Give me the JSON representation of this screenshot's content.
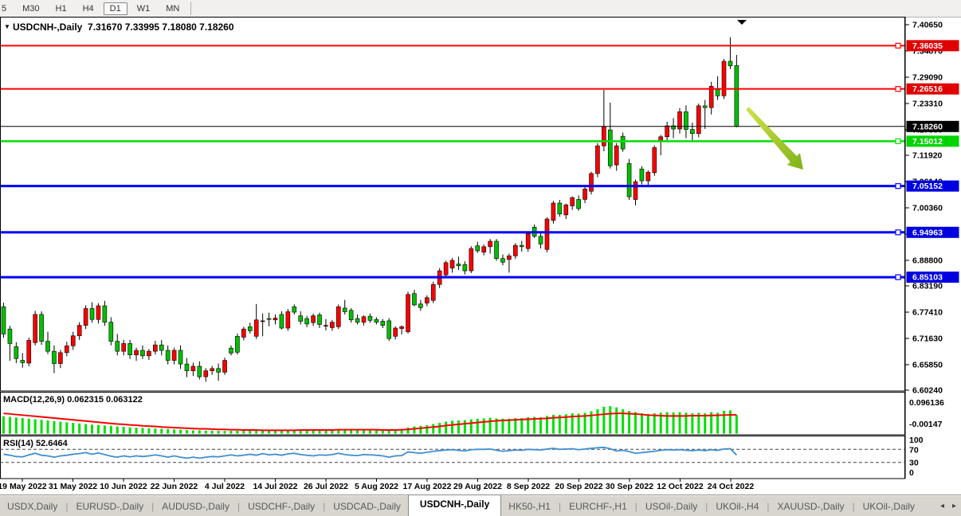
{
  "toolbar": {
    "timeframes": [
      {
        "label": "5",
        "active": false
      },
      {
        "label": "M30",
        "active": false
      },
      {
        "label": "H1",
        "active": false
      },
      {
        "label": "H4",
        "active": false
      },
      {
        "label": "D1",
        "active": true
      },
      {
        "label": "W1",
        "active": false
      },
      {
        "label": "MN",
        "active": false
      }
    ]
  },
  "chart": {
    "title_display": "USDCNH-,Daily  7.31670 7.33995 7.18080 7.18260",
    "symbol": "USDCNH-",
    "timeframe": "Daily",
    "ohlc": {
      "open": "7.31670",
      "high": "7.33995",
      "low": "7.18080",
      "close": "7.18260"
    },
    "dropdown_glyph": "▼",
    "top_marker_glyph": "▼"
  },
  "price_axis": {
    "labels": [
      "7.40650",
      "7.34870",
      "7.29090",
      "7.23310",
      "7.17530",
      "7.11920",
      "7.06140",
      "7.00360",
      "6.94580",
      "6.88800",
      "6.83190",
      "6.77410",
      "6.71630",
      "6.65850",
      "6.60240"
    ],
    "badges": [
      {
        "text": "7.36035",
        "price": 7.36035,
        "color": "#e00000",
        "text_color": "#ffffff"
      },
      {
        "text": "7.26516",
        "price": 7.26516,
        "color": "#e00000",
        "text_color": "#ffffff"
      },
      {
        "text": "7.18260",
        "price": 7.1826,
        "color": "#000000",
        "text_color": "#ffffff"
      },
      {
        "text": "7.15012",
        "price": 7.15012,
        "color": "#00d400",
        "text_color": "#ffffff"
      },
      {
        "text": "7.05152",
        "price": 7.05152,
        "color": "#0000e0",
        "text_color": "#ffffff"
      },
      {
        "text": "6.94963",
        "price": 6.94963,
        "color": "#0000e0",
        "text_color": "#ffffff"
      },
      {
        "text": "6.85103",
        "price": 6.85103,
        "color": "#0000e0",
        "text_color": "#ffffff"
      }
    ]
  },
  "hlines": [
    {
      "price": 7.36035,
      "color": "#ff0000",
      "width": 2
    },
    {
      "price": 7.26516,
      "color": "#ff0000",
      "width": 2
    },
    {
      "price": 7.1826,
      "color": "#000000",
      "width": 1
    },
    {
      "price": 7.15012,
      "color": "#00e000",
      "width": 2.5
    },
    {
      "price": 7.05152,
      "color": "#0000ff",
      "width": 3
    },
    {
      "price": 6.94963,
      "color": "#0000ff",
      "width": 3
    },
    {
      "price": 6.85103,
      "color": "#0000ff",
      "width": 3
    }
  ],
  "macd": {
    "display": "MACD(12,26,9) 0.062315 0.063122",
    "name": "MACD",
    "params": "12,26,9",
    "value": "0.062315",
    "signal_value": "0.063122",
    "scale_max": "0.096136",
    "scale_min": "-0.00147"
  },
  "rsi": {
    "display": "RSI(14) 52.6464",
    "name": "RSI",
    "params": "14",
    "value": "52.6464",
    "levels": [
      "100",
      "70",
      "30",
      "0"
    ]
  },
  "tabs": {
    "items": [
      {
        "label": "USDX,Daily",
        "active": false
      },
      {
        "label": "EURUSD-,Daily",
        "active": false
      },
      {
        "label": "AUDUSD-,Daily",
        "active": false
      },
      {
        "label": "USDCHF-,Daily",
        "active": false
      },
      {
        "label": "USDCAD-,Daily",
        "active": false
      },
      {
        "label": "USDCNH-,Daily",
        "active": true
      },
      {
        "label": "HK50-,H1",
        "active": false
      },
      {
        "label": "EURCHF-,H1",
        "active": false
      },
      {
        "label": "USOil-,Daily",
        "active": false
      },
      {
        "label": "UKOil-,H4",
        "active": false
      },
      {
        "label": "XAUUSD-,Daily",
        "active": false
      },
      {
        "label": "UKOil-,Daily",
        "active": false
      }
    ],
    "scroll_left": "◂",
    "scroll_right": "▸"
  },
  "annotations": {
    "arrow": {
      "direction": "down-right",
      "color_start": "#d2e24a",
      "color_end": "#7fb318"
    }
  },
  "colors": {
    "bull": "#ff0000",
    "bear": "#00c000",
    "wick": "#000000",
    "body_outline": "#000000",
    "macd_hist": "#00e000",
    "macd_signal": "#ff0000",
    "rsi_line": "#3f8fd2",
    "hline_red": "#ff0000",
    "hline_green": "#00e000",
    "hline_blue": "#0000ff",
    "hline_black": "#000000"
  },
  "chart_data": {
    "type": "candlestick",
    "title": "USDCNH- Daily",
    "ylim": [
      6.6024,
      7.4065
    ],
    "x_ticks": [
      "19 May 2022",
      "31 May 2022",
      "10 Jun 2022",
      "22 Jun 2022",
      "4 Jul 2022",
      "14 Jul 2022",
      "26 Jul 2022",
      "5 Aug 2022",
      "17 Aug 2022",
      "29 Aug 2022",
      "8 Sep 2022",
      "20 Sep 2022",
      "30 Sep 2022",
      "12 Oct 2022",
      "24 Oct 2022"
    ],
    "candles_format": [
      "open",
      "high",
      "low",
      "close"
    ],
    "candles": [
      [
        6.786,
        6.795,
        6.718,
        6.726
      ],
      [
        6.737,
        6.744,
        6.667,
        6.705
      ],
      [
        6.698,
        6.708,
        6.662,
        6.672
      ],
      [
        6.668,
        6.684,
        6.652,
        6.663
      ],
      [
        6.662,
        6.718,
        6.655,
        6.712
      ],
      [
        6.707,
        6.777,
        6.701,
        6.769
      ],
      [
        6.769,
        6.776,
        6.702,
        6.71
      ],
      [
        6.71,
        6.731,
        6.682,
        6.688
      ],
      [
        6.688,
        6.701,
        6.64,
        6.661
      ],
      [
        6.661,
        6.691,
        6.651,
        6.685
      ],
      [
        6.685,
        6.709,
        6.677,
        6.7
      ],
      [
        6.7,
        6.731,
        6.691,
        6.722
      ],
      [
        6.722,
        6.752,
        6.713,
        6.745
      ],
      [
        6.745,
        6.789,
        6.737,
        6.782
      ],
      [
        6.782,
        6.796,
        6.751,
        6.758
      ],
      [
        6.758,
        6.794,
        6.749,
        6.788
      ],
      [
        6.788,
        6.799,
        6.744,
        6.752
      ],
      [
        6.752,
        6.763,
        6.701,
        6.71
      ],
      [
        6.71,
        6.726,
        6.679,
        6.688
      ],
      [
        6.688,
        6.713,
        6.679,
        6.705
      ],
      [
        6.705,
        6.713,
        6.671,
        6.68
      ],
      [
        6.68,
        6.696,
        6.667,
        6.69
      ],
      [
        6.69,
        6.701,
        6.671,
        6.678
      ],
      [
        6.678,
        6.693,
        6.669,
        6.688
      ],
      [
        6.688,
        6.711,
        6.681,
        6.702
      ],
      [
        6.702,
        6.713,
        6.679,
        6.69
      ],
      [
        6.69,
        6.701,
        6.659,
        6.668
      ],
      [
        6.668,
        6.696,
        6.659,
        6.69
      ],
      [
        6.69,
        6.701,
        6.649,
        6.66
      ],
      [
        6.66,
        6.673,
        6.631,
        6.645
      ],
      [
        6.645,
        6.663,
        6.634,
        6.655
      ],
      [
        6.655,
        6.666,
        6.626,
        6.632
      ],
      [
        6.632,
        6.651,
        6.621,
        6.645
      ],
      [
        6.645,
        6.656,
        6.636,
        6.65
      ],
      [
        6.65,
        6.661,
        6.623,
        6.642
      ],
      [
        6.642,
        6.674,
        6.636,
        6.668
      ],
      [
        6.695,
        6.701,
        6.679,
        6.684
      ],
      [
        6.721,
        6.727,
        6.681,
        6.686
      ],
      [
        6.719,
        6.742,
        6.712,
        6.737
      ],
      [
        6.742,
        6.751,
        6.727,
        6.733
      ],
      [
        6.721,
        6.792,
        6.715,
        6.757
      ],
      [
        6.754,
        6.771,
        6.721,
        6.755
      ],
      [
        6.76,
        6.773,
        6.743,
        6.758
      ],
      [
        6.757,
        6.769,
        6.747,
        6.761
      ],
      [
        6.769,
        6.776,
        6.736,
        6.739
      ],
      [
        6.739,
        6.781,
        6.733,
        6.775
      ],
      [
        6.786,
        6.791,
        6.769,
        6.774
      ],
      [
        6.766,
        6.776,
        6.747,
        6.754
      ],
      [
        6.76,
        6.766,
        6.741,
        6.748
      ],
      [
        6.751,
        6.771,
        6.744,
        6.766
      ],
      [
        6.768,
        6.773,
        6.739,
        6.747
      ],
      [
        6.745,
        6.759,
        6.734,
        6.745
      ],
      [
        6.74,
        6.757,
        6.733,
        6.752
      ],
      [
        6.742,
        6.791,
        6.737,
        6.786
      ],
      [
        6.783,
        6.801,
        6.769,
        6.775
      ],
      [
        6.778,
        6.783,
        6.751,
        6.757
      ],
      [
        6.76,
        6.769,
        6.747,
        6.752
      ],
      [
        6.752,
        6.767,
        6.745,
        6.764
      ],
      [
        6.765,
        6.771,
        6.751,
        6.756
      ],
      [
        6.758,
        6.763,
        6.747,
        6.752
      ],
      [
        6.754,
        6.759,
        6.739,
        6.745
      ],
      [
        6.755,
        6.761,
        6.711,
        6.716
      ],
      [
        6.721,
        6.743,
        6.714,
        6.739
      ],
      [
        6.738,
        6.745,
        6.725,
        6.742
      ],
      [
        6.731,
        6.819,
        6.727,
        6.813
      ],
      [
        6.815,
        6.823,
        6.787,
        6.79
      ],
      [
        6.792,
        6.801,
        6.777,
        6.784
      ],
      [
        6.794,
        6.811,
        6.787,
        6.806
      ],
      [
        6.8,
        6.841,
        6.794,
        6.835
      ],
      [
        6.835,
        6.871,
        6.827,
        6.865
      ],
      [
        6.856,
        6.887,
        6.849,
        6.883
      ],
      [
        6.871,
        6.893,
        6.861,
        6.888
      ],
      [
        6.88,
        6.896,
        6.867,
        6.876
      ],
      [
        6.879,
        6.886,
        6.857,
        6.865
      ],
      [
        6.865,
        6.919,
        6.86,
        6.914
      ],
      [
        6.92,
        6.929,
        6.904,
        6.909
      ],
      [
        6.906,
        6.923,
        6.899,
        6.918
      ],
      [
        6.918,
        6.935,
        6.903,
        6.93
      ],
      [
        6.93,
        6.935,
        6.887,
        6.892
      ],
      [
        6.892,
        6.901,
        6.877,
        6.884
      ],
      [
        6.89,
        6.903,
        6.861,
        6.898
      ],
      [
        6.898,
        6.926,
        6.891,
        6.921
      ],
      [
        6.921,
        6.931,
        6.907,
        6.918
      ],
      [
        6.914,
        6.951,
        6.907,
        6.947
      ],
      [
        6.961,
        6.967,
        6.937,
        6.941
      ],
      [
        6.941,
        6.949,
        6.914,
        6.924
      ],
      [
        6.912,
        6.983,
        6.906,
        6.979
      ],
      [
        6.976,
        7.019,
        6.969,
        7.014
      ],
      [
        7.014,
        7.021,
        6.984,
        6.99
      ],
      [
        6.988,
        7.013,
        6.979,
        7.01
      ],
      [
        7.008,
        7.029,
        6.999,
        7.026
      ],
      [
        7.022,
        7.031,
        6.997,
        7.002
      ],
      [
        7.022,
        7.049,
        7.014,
        7.045
      ],
      [
        7.04,
        7.083,
        7.033,
        7.079
      ],
      [
        7.079,
        7.146,
        7.071,
        7.14
      ],
      [
        7.14,
        7.263,
        7.128,
        7.182
      ],
      [
        7.175,
        7.235,
        7.09,
        7.096
      ],
      [
        7.098,
        7.146,
        7.085,
        7.14
      ],
      [
        7.161,
        7.169,
        7.127,
        7.133
      ],
      [
        7.101,
        7.111,
        7.021,
        7.028
      ],
      [
        7.022,
        7.066,
        7.009,
        7.061
      ],
      [
        7.089,
        7.095,
        7.055,
        7.063
      ],
      [
        7.063,
        7.086,
        7.054,
        7.082
      ],
      [
        7.081,
        7.141,
        7.074,
        7.136
      ],
      [
        7.149,
        7.164,
        7.119,
        7.16
      ],
      [
        7.16,
        7.193,
        7.149,
        7.184
      ],
      [
        7.184,
        7.201,
        7.157,
        7.177
      ],
      [
        7.177,
        7.223,
        7.167,
        7.215
      ],
      [
        7.215,
        7.229,
        7.157,
        7.176
      ],
      [
        7.176,
        7.191,
        7.151,
        7.167
      ],
      [
        7.167,
        7.233,
        7.159,
        7.228
      ],
      [
        7.228,
        7.241,
        7.177,
        7.224
      ],
      [
        7.224,
        7.281,
        7.209,
        7.271
      ],
      [
        7.264,
        7.293,
        7.241,
        7.25
      ],
      [
        7.25,
        7.331,
        7.243,
        7.326
      ],
      [
        7.326,
        7.379,
        7.309,
        7.316
      ],
      [
        7.3167,
        7.33995,
        7.1808,
        7.1826
      ]
    ],
    "macd_histogram": [
      0.058,
      0.056,
      0.054,
      0.052,
      0.05,
      0.048,
      0.046,
      0.044,
      0.042,
      0.04,
      0.038,
      0.036,
      0.034,
      0.032,
      0.03,
      0.029,
      0.027,
      0.026,
      0.024,
      0.023,
      0.021,
      0.02,
      0.019,
      0.018,
      0.017,
      0.016,
      0.015,
      0.014,
      0.013,
      0.012,
      0.011,
      0.011,
      0.01,
      0.01,
      0.009,
      0.009,
      0.009,
      0.01,
      0.01,
      0.011,
      0.011,
      0.01,
      0.01,
      0.011,
      0.011,
      0.012,
      0.012,
      0.013,
      0.013,
      0.012,
      0.012,
      0.013,
      0.013,
      0.014,
      0.015,
      0.016,
      0.015,
      0.014,
      0.013,
      0.012,
      0.012,
      0.011,
      0.012,
      0.014,
      0.02,
      0.024,
      0.026,
      0.028,
      0.032,
      0.036,
      0.04,
      0.043,
      0.044,
      0.045,
      0.048,
      0.05,
      0.051,
      0.053,
      0.051,
      0.05,
      0.05,
      0.052,
      0.052,
      0.055,
      0.056,
      0.055,
      0.059,
      0.063,
      0.063,
      0.065,
      0.068,
      0.067,
      0.07,
      0.075,
      0.082,
      0.09,
      0.092,
      0.088,
      0.082,
      0.076,
      0.072,
      0.068,
      0.066,
      0.068,
      0.07,
      0.072,
      0.071,
      0.072,
      0.07,
      0.068,
      0.07,
      0.068,
      0.072,
      0.07,
      0.076,
      0.078,
      0.0623
    ],
    "macd_signal": [
      0.068,
      0.066,
      0.064,
      0.062,
      0.06,
      0.058,
      0.056,
      0.054,
      0.052,
      0.05,
      0.048,
      0.046,
      0.044,
      0.042,
      0.04,
      0.038,
      0.036,
      0.034,
      0.032,
      0.031,
      0.029,
      0.028,
      0.026,
      0.025,
      0.024,
      0.022,
      0.021,
      0.02,
      0.019,
      0.018,
      0.017,
      0.016,
      0.016,
      0.015,
      0.014,
      0.014,
      0.013,
      0.013,
      0.012,
      0.012,
      0.012,
      0.011,
      0.011,
      0.011,
      0.011,
      0.011,
      0.011,
      0.012,
      0.012,
      0.012,
      0.012,
      0.012,
      0.012,
      0.013,
      0.013,
      0.013,
      0.013,
      0.013,
      0.013,
      0.013,
      0.012,
      0.012,
      0.012,
      0.013,
      0.014,
      0.016,
      0.018,
      0.02,
      0.022,
      0.024,
      0.027,
      0.029,
      0.031,
      0.033,
      0.035,
      0.037,
      0.039,
      0.041,
      0.043,
      0.044,
      0.045,
      0.046,
      0.047,
      0.048,
      0.049,
      0.05,
      0.051,
      0.053,
      0.054,
      0.055,
      0.057,
      0.058,
      0.059,
      0.061,
      0.063,
      0.065,
      0.067,
      0.068,
      0.068,
      0.067,
      0.066,
      0.064,
      0.062,
      0.061,
      0.06,
      0.059,
      0.059,
      0.059,
      0.059,
      0.06,
      0.06,
      0.06,
      0.061,
      0.061,
      0.062,
      0.063,
      0.0631
    ],
    "rsi_values": [
      55,
      52,
      48,
      47,
      53,
      58,
      52,
      50,
      46,
      50,
      52,
      55,
      57,
      60,
      55,
      59,
      54,
      49,
      46,
      50,
      47,
      50,
      48,
      50,
      53,
      50,
      46,
      50,
      46,
      43,
      46,
      43,
      46,
      48,
      47,
      50,
      53,
      50,
      52,
      55,
      52,
      57,
      53,
      55,
      52,
      56,
      58,
      54,
      52,
      50,
      53,
      52,
      54,
      58,
      54,
      52,
      51,
      54,
      53,
      52,
      50,
      46,
      50,
      51,
      62,
      60,
      58,
      61,
      64,
      66,
      68,
      69,
      67,
      65,
      69,
      70,
      70,
      71,
      67,
      64,
      66,
      68,
      67,
      70,
      69,
      68,
      71,
      73,
      70,
      71,
      72,
      69,
      71,
      73,
      75,
      76,
      72,
      65,
      67,
      63,
      58,
      60,
      62,
      64,
      67,
      69,
      68,
      69,
      67,
      66,
      68,
      66,
      69,
      67,
      71,
      72,
      52.6
    ]
  }
}
